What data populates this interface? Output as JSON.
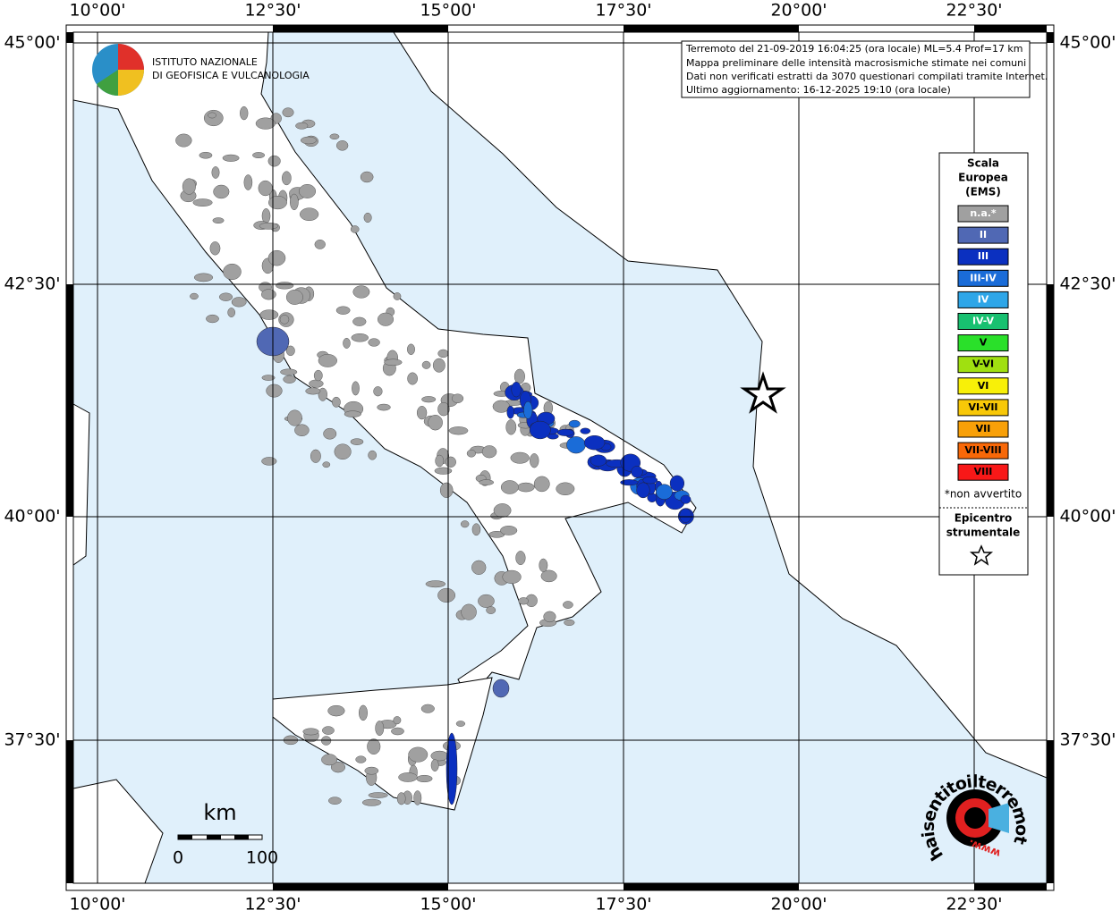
{
  "header": {
    "institute": [
      "ISTITUTO NAZIONALE",
      "DI GEOFISICA E VULCANOLOGIA"
    ]
  },
  "info_box": {
    "lines": [
      "Terremoto del 21-09-2019 16:04:25 (ora locale) ML=5.4 Prof=17 km",
      "Mappa preliminare delle intensità macrosismiche stimate nei comuni",
      "Dati non verificati estratti da 3070 questionari compilati tramite Internet.",
      "Ultimo aggiornamento: 16-12-2025 19:10 (ora locale)"
    ]
  },
  "axes": {
    "top": [
      "10°00'",
      "12°30'",
      "15°00'",
      "17°30'",
      "20°00'",
      "22°30'"
    ],
    "bottom": [
      "10°00'",
      "12°30'",
      "15°00'",
      "17°30'",
      "20°00'",
      "22°30'"
    ],
    "left": [
      "45°00'",
      "42°30'",
      "40°00'",
      "37°30'"
    ],
    "right": [
      "45°00'",
      "42°30'",
      "40°00'",
      "37°30'"
    ]
  },
  "legend": {
    "title": [
      "Scala",
      "Europea",
      "(EMS)"
    ],
    "items": [
      {
        "label": "n.a.*",
        "color": "#a0a0a0"
      },
      {
        "label": "II",
        "color": "#5068b4"
      },
      {
        "label": "III",
        "color": "#0b30c0"
      },
      {
        "label": "III-IV",
        "color": "#1a6cd8"
      },
      {
        "label": "IV",
        "color": "#2ea6e8"
      },
      {
        "label": "IV-V",
        "color": "#18c070"
      },
      {
        "label": "V",
        "color": "#2ae02a"
      },
      {
        "label": "V-VI",
        "color": "#a0e010"
      },
      {
        "label": "VI",
        "color": "#f8f008"
      },
      {
        "label": "VI-VII",
        "color": "#f8c808"
      },
      {
        "label": "VII",
        "color": "#f8a008"
      },
      {
        "label": "VII-VIII",
        "color": "#f86808"
      },
      {
        "label": "VIII",
        "color": "#f81818"
      }
    ],
    "note": "*non avvertito",
    "epicentre": [
      "Epicentro",
      "strumentale"
    ]
  },
  "scale_bar": {
    "unit": "km",
    "labels": [
      "0",
      "100"
    ]
  },
  "watermark": {
    "text": "haisentitoilterremoto.it",
    "www": "www."
  }
}
